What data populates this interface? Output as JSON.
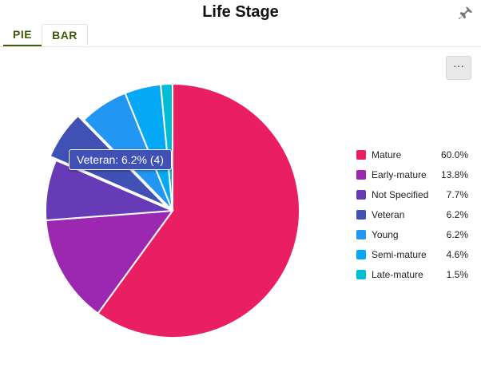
{
  "title": "Life Stage",
  "tabs": [
    {
      "label": "PIE",
      "active": true
    },
    {
      "label": "BAR",
      "active": false
    }
  ],
  "menu_label": "···",
  "tooltip": {
    "text": "Veteran: 6.2% (4)"
  },
  "chart_data": {
    "type": "pie",
    "title": "Life Stage",
    "legend_position": "right",
    "highlighted": "Veteran",
    "slices": [
      {
        "label": "Mature",
        "percent": 60.0,
        "percent_label": "60.0%",
        "color": "#e91e63"
      },
      {
        "label": "Early-mature",
        "percent": 13.8,
        "percent_label": "13.8%",
        "color": "#9c27b0"
      },
      {
        "label": "Not Specified",
        "percent": 7.7,
        "percent_label": "7.7%",
        "color": "#673ab7"
      },
      {
        "label": "Veteran",
        "percent": 6.2,
        "percent_label": "6.2%",
        "count": 4,
        "color": "#3f51b5"
      },
      {
        "label": "Young",
        "percent": 6.2,
        "percent_label": "6.2%",
        "color": "#2196f3"
      },
      {
        "label": "Semi-mature",
        "percent": 4.6,
        "percent_label": "4.6%",
        "color": "#03a9f4"
      },
      {
        "label": "Late-mature",
        "percent": 1.5,
        "percent_label": "1.5%",
        "color": "#00bcd4"
      }
    ]
  }
}
